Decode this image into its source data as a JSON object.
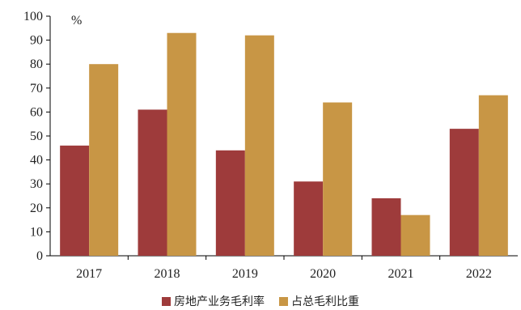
{
  "chart_data": {
    "type": "bar",
    "categories": [
      "2017",
      "2018",
      "2019",
      "2020",
      "2021",
      "2022"
    ],
    "series": [
      {
        "name": "房地产业务毛利率",
        "color": "#9e3b3b",
        "values": [
          46,
          61,
          44,
          31,
          24,
          53
        ]
      },
      {
        "name": "占总毛利比重",
        "color": "#c89645",
        "values": [
          80,
          93,
          92,
          64,
          17,
          67
        ]
      }
    ],
    "ylabel": "%",
    "ylim": [
      0,
      100
    ],
    "yticks": [
      "0",
      "10",
      "20",
      "30",
      "40",
      "50",
      "60",
      "70",
      "80",
      "90",
      "100"
    ],
    "grid": false,
    "legend_position": "bottom"
  }
}
